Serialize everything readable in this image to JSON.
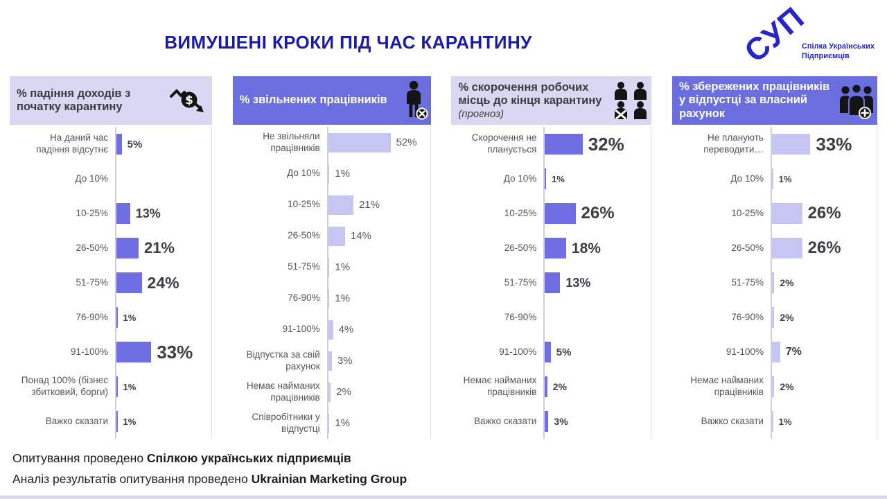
{
  "title": "ВИМУШЕНІ КРОКИ ПІД ЧАС КАРАНТИНУ",
  "logo": {
    "acronym": "СУП",
    "caption_line1": "Спілка Українських",
    "caption_line2": "Підприємців"
  },
  "footer": {
    "line1_prefix": "Опитування проведено ",
    "line1_bold": "Спілкою українських підприємців",
    "line2_prefix": "Аналіз результатів опитування проведено ",
    "line2_bold": "Ukrainian Marketing Group"
  },
  "colors": {
    "title_text": "#1B1BAA",
    "logo_blue": "#2525C8",
    "header_light_bg": "#D9D8F2",
    "header_light_text": "#3A3A40",
    "header_dark_bg": "#6B6EDF",
    "header_dark_text": "#FFFFFF",
    "bar_dark": "#6F6EE3",
    "bar_light": "#C7C5F1",
    "axis_line": "#CFCFDA",
    "panel_right_border": "#D9D9E2",
    "label_text": "#55555C",
    "value_bold_text": "#3D3D42",
    "value_regular_text": "#595959",
    "bottom_strip": "#D9D9F1"
  },
  "chart_data": [
    {
      "type": "bar",
      "orientation": "horizontal",
      "title": "% падіння доходів з\nпочатку карантину",
      "subtitle": "",
      "icon": "money-decline-icon",
      "header_style": "light",
      "bar_style": "dark",
      "values_bold": true,
      "xlim": [
        0,
        90
      ],
      "grid": false,
      "legend": "none",
      "categories": [
        "На даний час\nпадіння відсутнє",
        "До 10%",
        "10-25%",
        "26-50%",
        "51-75%",
        "76-90%",
        "91-100%",
        "Понад 100% (бізнес\nзбитковий, борги)",
        "Важко сказати"
      ],
      "values": [
        5,
        0,
        13,
        21,
        24,
        1,
        33,
        1,
        1
      ],
      "value_labels": [
        "5%",
        "",
        "13%",
        "21%",
        "24%",
        "1%",
        "33%",
        "1%",
        "1%"
      ]
    },
    {
      "type": "bar",
      "orientation": "horizontal",
      "title": "% звільнених працівників",
      "subtitle": "",
      "icon": "fired-person-icon",
      "header_style": "dark",
      "bar_style": "light",
      "values_bold": false,
      "xlim": [
        0,
        85
      ],
      "grid": false,
      "legend": "none",
      "categories": [
        "Не звільняли\nпрацівників",
        "До 10%",
        "10-25%",
        "26-50%",
        "51-75%",
        "76-90%",
        "91-100%",
        "Відпустка за свій\nрахунок",
        "Немає найманих\nпрацівників",
        "Співробітники у\nвідпустці"
      ],
      "values": [
        52,
        1,
        21,
        14,
        1,
        1,
        4,
        3,
        2,
        1
      ],
      "value_labels": [
        "52%",
        "1%",
        "21%",
        "14%",
        "1%",
        "1%",
        "4%",
        "3%",
        "2%",
        "1%"
      ]
    },
    {
      "type": "bar",
      "orientation": "horizontal",
      "title": "% скорочення робочих\nмісць до кінця карантину",
      "subtitle": "(прогноз)",
      "icon": "people-cut-icon",
      "header_style": "light",
      "bar_style": "dark",
      "values_bold": true,
      "xlim": [
        0,
        90
      ],
      "grid": false,
      "legend": "none",
      "categories": [
        "Скорочення не\nпланується",
        "До 10%",
        "10-25%",
        "26-50%",
        "51-75%",
        "76-90%",
        "91-100%",
        "Немає найманих\nпрацівників",
        "Важко сказати"
      ],
      "values": [
        32,
        1,
        26,
        18,
        13,
        0,
        5,
        2,
        3
      ],
      "value_labels": [
        "32%",
        "1%",
        "26%",
        "18%",
        "13%",
        "",
        "5%",
        "2%",
        "3%"
      ]
    },
    {
      "type": "bar",
      "orientation": "horizontal",
      "title": "% збережених працівників\nу відпустці за власний\nрахунок",
      "subtitle": "",
      "icon": "people-plus-icon",
      "header_style": "dark",
      "bar_style": "light",
      "values_bold": true,
      "xlim": [
        0,
        90
      ],
      "grid": false,
      "legend": "none",
      "categories": [
        "Не планують\nпереводити…",
        "До 10%",
        "10-25%",
        "26-50%",
        "51-75%",
        "76-90%",
        "91-100%",
        "Немає найманих\nпрацівників",
        "Важко сказати"
      ],
      "values": [
        33,
        1,
        26,
        26,
        2,
        2,
        7,
        2,
        1
      ],
      "value_labels": [
        "33%",
        "1%",
        "26%",
        "26%",
        "2%",
        "2%",
        "7%",
        "2%",
        "1%"
      ]
    }
  ]
}
